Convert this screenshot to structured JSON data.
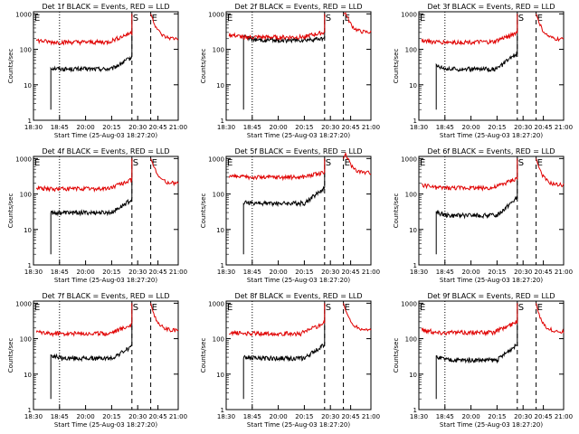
{
  "colors": {
    "events": "#000000",
    "lld": "#e00000",
    "background": "#ffffff"
  },
  "chart_data": [
    {
      "type": "line",
      "title": "Det 1f BLACK = Events, RED = LLD",
      "xlabel": "Start Time (25-Aug-03 18:27:20)",
      "ylabel": "Counts/sec",
      "x_ticks": [
        "18:30",
        "18:45",
        "20:00",
        "20:15",
        "20:30",
        "20:45",
        "21:00"
      ],
      "y_ticks": [
        "1",
        "10",
        "100",
        "1000"
      ],
      "event_markers": [
        {
          "label": "E"
        },
        {
          "label": "S"
        },
        {
          "label": "E"
        }
      ],
      "series": [
        {
          "name": "Events",
          "color": "black",
          "start": 30,
          "mid": 28,
          "end": 60,
          "spike_to": 1000
        },
        {
          "name": "LLD",
          "color": "red",
          "start": 180,
          "mid": 160,
          "end": 300,
          "spike_to": 1000,
          "after": 200
        }
      ]
    },
    {
      "type": "line",
      "title": "Det 2f BLACK = Events, RED = LLD",
      "xlabel": "Start Time (25-Aug-03 18:27:20)",
      "ylabel": "Counts/sec",
      "x_ticks": [
        "18:30",
        "18:45",
        "20:00",
        "20:15",
        "20:30",
        "20:45",
        "21:00"
      ],
      "y_ticks": [
        "1",
        "10",
        "100",
        "1000"
      ],
      "event_markers": [
        {
          "label": "E"
        },
        {
          "label": "S"
        },
        {
          "label": "E"
        }
      ],
      "series": [
        {
          "name": "Events",
          "color": "black",
          "start": 240,
          "mid": 180,
          "end": 200,
          "spike_to": 1000
        },
        {
          "name": "LLD",
          "color": "red",
          "start": 260,
          "mid": 220,
          "end": 300,
          "spike_to": 1000,
          "after": 300
        }
      ]
    },
    {
      "type": "line",
      "title": "Det 3f BLACK = Events, RED = LLD",
      "xlabel": "Start Time (25-Aug-03 18:27:20)",
      "ylabel": "Counts/sec",
      "x_ticks": [
        "18:30",
        "18:45",
        "20:00",
        "20:15",
        "20:30",
        "20:45",
        "21:00"
      ],
      "y_ticks": [
        "1",
        "10",
        "100",
        "1000"
      ],
      "event_markers": [
        {
          "label": "E"
        },
        {
          "label": "S"
        },
        {
          "label": "E"
        }
      ],
      "series": [
        {
          "name": "Events",
          "color": "black",
          "start": 35,
          "mid": 28,
          "end": 80,
          "spike_to": 1000
        },
        {
          "name": "LLD",
          "color": "red",
          "start": 180,
          "mid": 160,
          "end": 300,
          "spike_to": 1000,
          "after": 190
        }
      ]
    },
    {
      "type": "line",
      "title": "Det 4f BLACK = Events, RED = LLD",
      "xlabel": "Start Time (25-Aug-03 18:27:20)",
      "ylabel": "Counts/sec",
      "x_ticks": [
        "18:30",
        "18:45",
        "20:00",
        "20:15",
        "20:30",
        "20:45",
        "21:00"
      ],
      "y_ticks": [
        "1",
        "10",
        "100",
        "1000"
      ],
      "event_markers": [
        {
          "label": "E"
        },
        {
          "label": "S"
        },
        {
          "label": "E"
        }
      ],
      "series": [
        {
          "name": "Events",
          "color": "black",
          "start": 30,
          "mid": 30,
          "end": 70,
          "spike_to": 1000
        },
        {
          "name": "LLD",
          "color": "red",
          "start": 150,
          "mid": 140,
          "end": 250,
          "spike_to": 1000,
          "after": 200
        }
      ]
    },
    {
      "type": "line",
      "title": "Det 5f BLACK = Events, RED = LLD",
      "xlabel": "Start Time (25-Aug-03 18:27:20)",
      "ylabel": "Counts/sec",
      "x_ticks": [
        "18:30",
        "18:45",
        "20:00",
        "20:15",
        "20:30",
        "20:45",
        "21:00"
      ],
      "y_ticks": [
        "1",
        "10",
        "100",
        "1000"
      ],
      "event_markers": [
        {
          "label": "E"
        },
        {
          "label": "S"
        },
        {
          "label": "E"
        }
      ],
      "series": [
        {
          "name": "Events",
          "color": "black",
          "start": 60,
          "mid": 55,
          "end": 150,
          "spike_to": 1000
        },
        {
          "name": "LLD",
          "color": "red",
          "start": 320,
          "mid": 300,
          "end": 400,
          "spike_to": 1000,
          "after": 400
        }
      ]
    },
    {
      "type": "line",
      "title": "Det 6f BLACK = Events, RED = LLD",
      "xlabel": "Start Time (25-Aug-03 18:27:20)",
      "ylabel": "Counts/sec",
      "x_ticks": [
        "18:30",
        "18:45",
        "20:00",
        "20:15",
        "20:30",
        "20:45",
        "21:00"
      ],
      "y_ticks": [
        "1",
        "10",
        "100",
        "1000"
      ],
      "event_markers": [
        {
          "label": "E"
        },
        {
          "label": "S"
        },
        {
          "label": "E"
        }
      ],
      "series": [
        {
          "name": "Events",
          "color": "black",
          "start": 30,
          "mid": 25,
          "end": 80,
          "spike_to": 1000
        },
        {
          "name": "LLD",
          "color": "red",
          "start": 180,
          "mid": 150,
          "end": 280,
          "spike_to": 1000,
          "after": 180
        }
      ]
    },
    {
      "type": "line",
      "title": "Det 7f BLACK = Events, RED = LLD",
      "xlabel": "Start Time (25-Aug-03 18:27:20)",
      "ylabel": "Counts/sec",
      "x_ticks": [
        "18:30",
        "18:45",
        "20:00",
        "20:15",
        "20:30",
        "20:45",
        "21:00"
      ],
      "y_ticks": [
        "1",
        "10",
        "100",
        "1000"
      ],
      "event_markers": [
        {
          "label": "E"
        },
        {
          "label": "S"
        },
        {
          "label": "E"
        }
      ],
      "series": [
        {
          "name": "Events",
          "color": "black",
          "start": 35,
          "mid": 28,
          "end": 60,
          "spike_to": 1000
        },
        {
          "name": "LLD",
          "color": "red",
          "start": 150,
          "mid": 140,
          "end": 250,
          "spike_to": 1000,
          "after": 170
        }
      ]
    },
    {
      "type": "line",
      "title": "Det 8f BLACK = Events, RED = LLD",
      "xlabel": "Start Time (25-Aug-03 18:27:20)",
      "ylabel": "Counts/sec",
      "x_ticks": [
        "18:30",
        "18:45",
        "20:00",
        "20:15",
        "20:30",
        "20:45",
        "21:00"
      ],
      "y_ticks": [
        "1",
        "10",
        "100",
        "1000"
      ],
      "event_markers": [
        {
          "label": "E"
        },
        {
          "label": "S"
        },
        {
          "label": "E"
        }
      ],
      "series": [
        {
          "name": "Events",
          "color": "black",
          "start": 30,
          "mid": 28,
          "end": 70,
          "spike_to": 1000
        },
        {
          "name": "LLD",
          "color": "red",
          "start": 150,
          "mid": 140,
          "end": 280,
          "spike_to": 1000,
          "after": 180
        }
      ]
    },
    {
      "type": "line",
      "title": "Det 9f BLACK = Events, RED = LLD",
      "xlabel": "Start Time (25-Aug-03 18:27:20)",
      "ylabel": "Counts/sec",
      "x_ticks": [
        "18:30",
        "18:45",
        "20:00",
        "20:15",
        "20:30",
        "20:45",
        "21:00"
      ],
      "y_ticks": [
        "1",
        "10",
        "100",
        "1000"
      ],
      "event_markers": [
        {
          "label": "E"
        },
        {
          "label": "S"
        },
        {
          "label": "E"
        }
      ],
      "series": [
        {
          "name": "Events",
          "color": "black",
          "start": 30,
          "mid": 25,
          "end": 70,
          "spike_to": 1000
        },
        {
          "name": "LLD",
          "color": "red",
          "start": 180,
          "mid": 150,
          "end": 300,
          "spike_to": 1000,
          "after": 160
        }
      ]
    }
  ]
}
